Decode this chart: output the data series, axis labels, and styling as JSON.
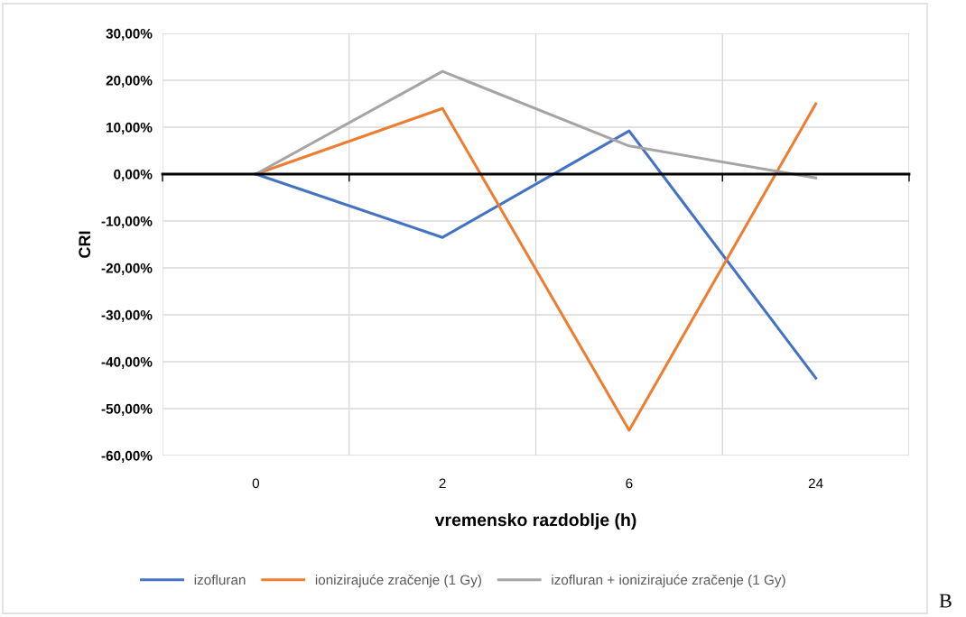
{
  "chart_data": {
    "type": "line",
    "xlabel": "vremensko razdoblje (h)",
    "ylabel": "CRI",
    "categories": [
      "0",
      "2",
      "6",
      "24"
    ],
    "series": [
      {
        "name": "izofluran",
        "color": "#4472c4",
        "values": [
          0,
          -13.5,
          9.2,
          -43.5
        ]
      },
      {
        "name": "ionizirajuće zračenje (1 Gy)",
        "color": "#ed7d31",
        "values": [
          0,
          14.0,
          -54.6,
          15.0
        ]
      },
      {
        "name": "izofluran + ionizirajuće zračenje (1 Gy)",
        "color": "#a5a5a5",
        "values": [
          0,
          21.9,
          6.0,
          -0.8
        ]
      }
    ],
    "ylim": [
      -60,
      30
    ],
    "yticks": [
      {
        "value": -60,
        "label": "-60,00%"
      },
      {
        "value": -50,
        "label": "-50,00%"
      },
      {
        "value": -40,
        "label": "-40,00%"
      },
      {
        "value": -30,
        "label": "-30,00%"
      },
      {
        "value": -20,
        "label": "-20,00%"
      },
      {
        "value": -10,
        "label": "-10,00%"
      },
      {
        "value": 0,
        "label": "0,00%"
      },
      {
        "value": 10,
        "label": "10,00%"
      },
      {
        "value": 20,
        "label": "20,00%"
      },
      {
        "value": 30,
        "label": "30,00%"
      }
    ],
    "grid": true,
    "legend": "bottom",
    "marker": "none",
    "line_style": "solid",
    "annotations": [
      "B"
    ]
  }
}
